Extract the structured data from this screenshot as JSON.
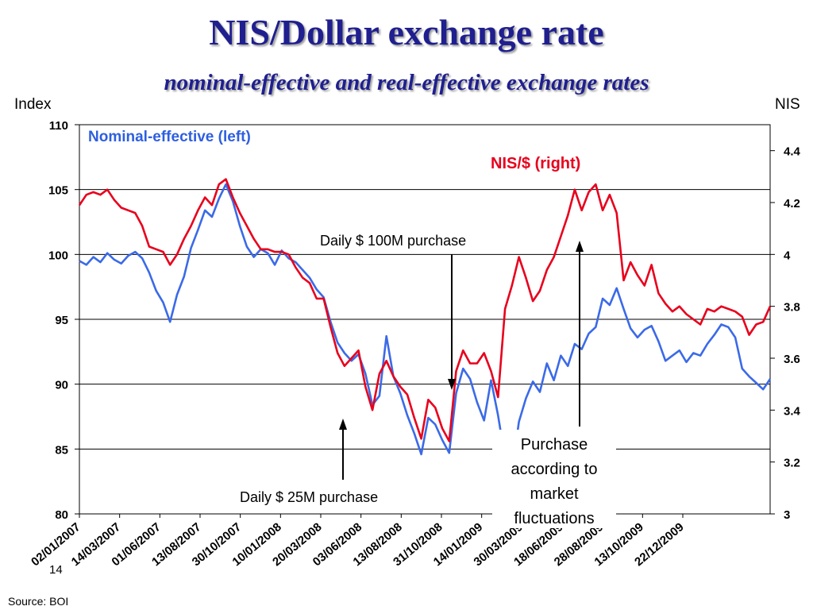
{
  "page": {
    "title": "NIS/Dollar exchange rate",
    "subtitle": "nominal-effective and real-effective exchange rates",
    "slide_number": "14",
    "source": "Source: BOI"
  },
  "chart_data": {
    "type": "line",
    "ylabel_left": "Index",
    "ylabel_right": "NIS",
    "left_axis": {
      "min": 80,
      "max": 110,
      "ticks": [
        80,
        85,
        90,
        95,
        100,
        105,
        110
      ]
    },
    "right_axis": {
      "min": 3,
      "max": 4.5,
      "ticks": [
        "3",
        "3.2",
        "3.4",
        "3.6",
        "3.8",
        "4",
        "4.2",
        "4.4"
      ]
    },
    "x_tick_labels": [
      "02/01/2007",
      "14/03/2007",
      "01/06/2007",
      "13/08/2007",
      "30/10/2007",
      "10/01/2008",
      "20/03/2008",
      "03/06/2008",
      "13/08/2008",
      "31/10/2008",
      "14/01/2009",
      "30/03/2009",
      "18/06/2009",
      "28/08/2009",
      "13/10/2009",
      "22/12/2009"
    ],
    "grid": "horizontal",
    "legend": [
      {
        "label": "Nominal-effective (left)",
        "color": "#2e5fe0"
      },
      {
        "label": "NIS/$ (right)",
        "color": "#e8001c"
      }
    ],
    "series": [
      {
        "name": "Nominal-effective (left)",
        "axis": "left",
        "color": "#3b6ae8",
        "values": [
          99.5,
          99.2,
          99.8,
          99.4,
          100.1,
          99.6,
          99.3,
          99.9,
          100.2,
          99.7,
          98.6,
          97.2,
          96.3,
          94.8,
          96.9,
          98.3,
          100.5,
          101.9,
          103.4,
          102.9,
          104.3,
          105.4,
          104.1,
          102.2,
          100.6,
          99.8,
          100.4,
          100.1,
          99.2,
          100.3,
          99.7,
          99.4,
          98.8,
          98.2,
          97.3,
          96.7,
          94.8,
          93.2,
          92.4,
          91.8,
          92.3,
          90.8,
          88.4,
          89.1,
          93.7,
          90.6,
          89.3,
          87.6,
          86.2,
          84.6,
          87.4,
          86.9,
          85.7,
          84.7,
          89.3,
          91.2,
          90.4,
          88.6,
          87.2,
          90.3,
          87.6,
          84.3,
          83.2,
          87.1,
          88.9,
          90.2,
          89.4,
          91.6,
          90.3,
          92.2,
          91.4,
          93.1,
          92.7,
          93.9,
          94.4,
          96.6,
          96.1,
          97.4,
          95.8,
          94.3,
          93.6,
          94.2,
          94.5,
          93.3,
          91.8,
          92.2,
          92.6,
          91.7,
          92.4,
          92.2,
          93.1,
          93.8,
          94.6,
          94.4,
          93.6,
          91.2,
          90.6,
          90.1,
          89.6,
          90.4
        ]
      },
      {
        "name": "NIS/$ (right)",
        "axis": "right",
        "color": "#e8001c",
        "values": [
          4.19,
          4.23,
          4.24,
          4.23,
          4.25,
          4.21,
          4.18,
          4.17,
          4.16,
          4.11,
          4.03,
          4.02,
          4.01,
          3.96,
          4.0,
          4.06,
          4.11,
          4.17,
          4.22,
          4.19,
          4.27,
          4.29,
          4.22,
          4.16,
          4.11,
          4.06,
          4.02,
          4.02,
          4.01,
          4.01,
          4.0,
          3.95,
          3.91,
          3.89,
          3.83,
          3.83,
          3.72,
          3.62,
          3.57,
          3.6,
          3.63,
          3.49,
          3.4,
          3.54,
          3.59,
          3.53,
          3.49,
          3.46,
          3.37,
          3.29,
          3.44,
          3.41,
          3.33,
          3.28,
          3.55,
          3.63,
          3.58,
          3.58,
          3.62,
          3.55,
          3.45,
          3.79,
          3.88,
          3.99,
          3.91,
          3.82,
          3.86,
          3.94,
          3.99,
          4.07,
          4.15,
          4.25,
          4.17,
          4.24,
          4.27,
          4.17,
          4.23,
          4.16,
          3.9,
          3.97,
          3.92,
          3.88,
          3.96,
          3.85,
          3.81,
          3.78,
          3.8,
          3.77,
          3.75,
          3.73,
          3.79,
          3.78,
          3.8,
          3.79,
          3.78,
          3.76,
          3.69,
          3.73,
          3.74,
          3.8
        ]
      }
    ],
    "annotations": [
      {
        "text": "Daily $ 100M purchase"
      },
      {
        "text": "Daily $ 25M purchase"
      },
      {
        "text": "Purchase according to market fluctuations"
      }
    ]
  }
}
